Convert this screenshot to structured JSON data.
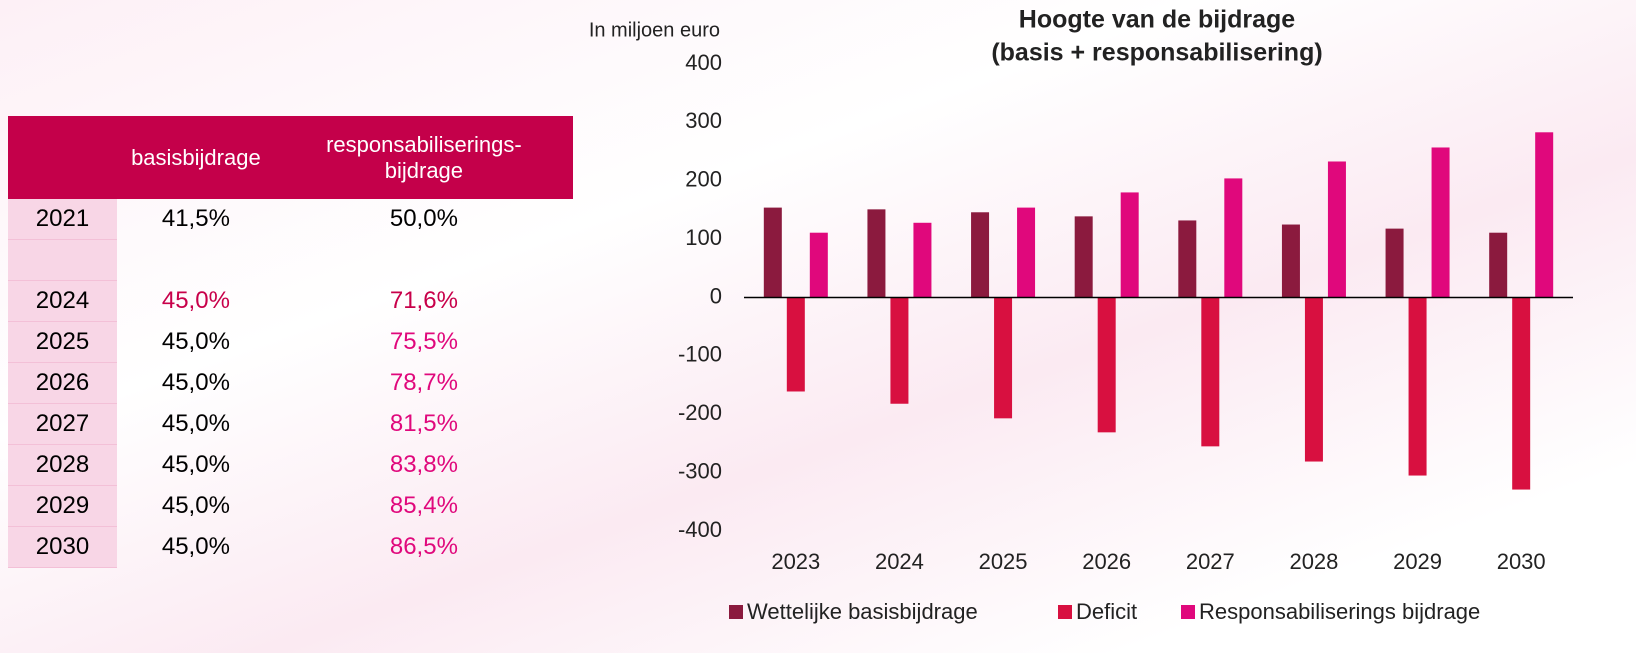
{
  "table": {
    "header": [
      "basisbijdrage",
      "responsabiliserings-bijdrage"
    ],
    "rows": [
      [
        "2021",
        "41,5%",
        "50,0%"
      ],
      [
        "2024",
        "45,0%",
        "71,6%"
      ],
      [
        "2025",
        "45,0%",
        "75,5%"
      ],
      [
        "2026",
        "45,0%",
        "78,7%"
      ],
      [
        "2027",
        "45,0%",
        "81,5%"
      ],
      [
        "2028",
        "45,0%",
        "83,8%"
      ],
      [
        "2029",
        "45,0%",
        "85,4%"
      ],
      [
        "2030",
        "45,0%",
        "86,5%"
      ]
    ]
  },
  "chart_data": {
    "type": "bar",
    "title": "Hoogte van de bijdrage",
    "subtitle": "(basis + responsabilisering)",
    "y_label": "In miljoen euro",
    "categories": [
      "2023",
      "2024",
      "2025",
      "2026",
      "2027",
      "2028",
      "2029",
      "2030"
    ],
    "series": [
      {
        "name": "Wettelijke basisbijdrage",
        "color": "#8b1a3e",
        "values": [
          154,
          151,
          146,
          139,
          132,
          125,
          118,
          111
        ]
      },
      {
        "name": "Deficit",
        "color": "#d81040",
        "values": [
          -161,
          -182,
          -207,
          -231,
          -255,
          -281,
          -305,
          -329
        ]
      },
      {
        "name": "Responsabiliserings bijdrage",
        "color": "#e0087c",
        "values": [
          111,
          128,
          154,
          180,
          204,
          233,
          257,
          283
        ]
      }
    ],
    "ylim": [
      -400,
      400
    ],
    "yticks": [
      -400,
      -300,
      -200,
      -100,
      0,
      100,
      200,
      300,
      400
    ],
    "grid": false,
    "legend": "bottom"
  }
}
